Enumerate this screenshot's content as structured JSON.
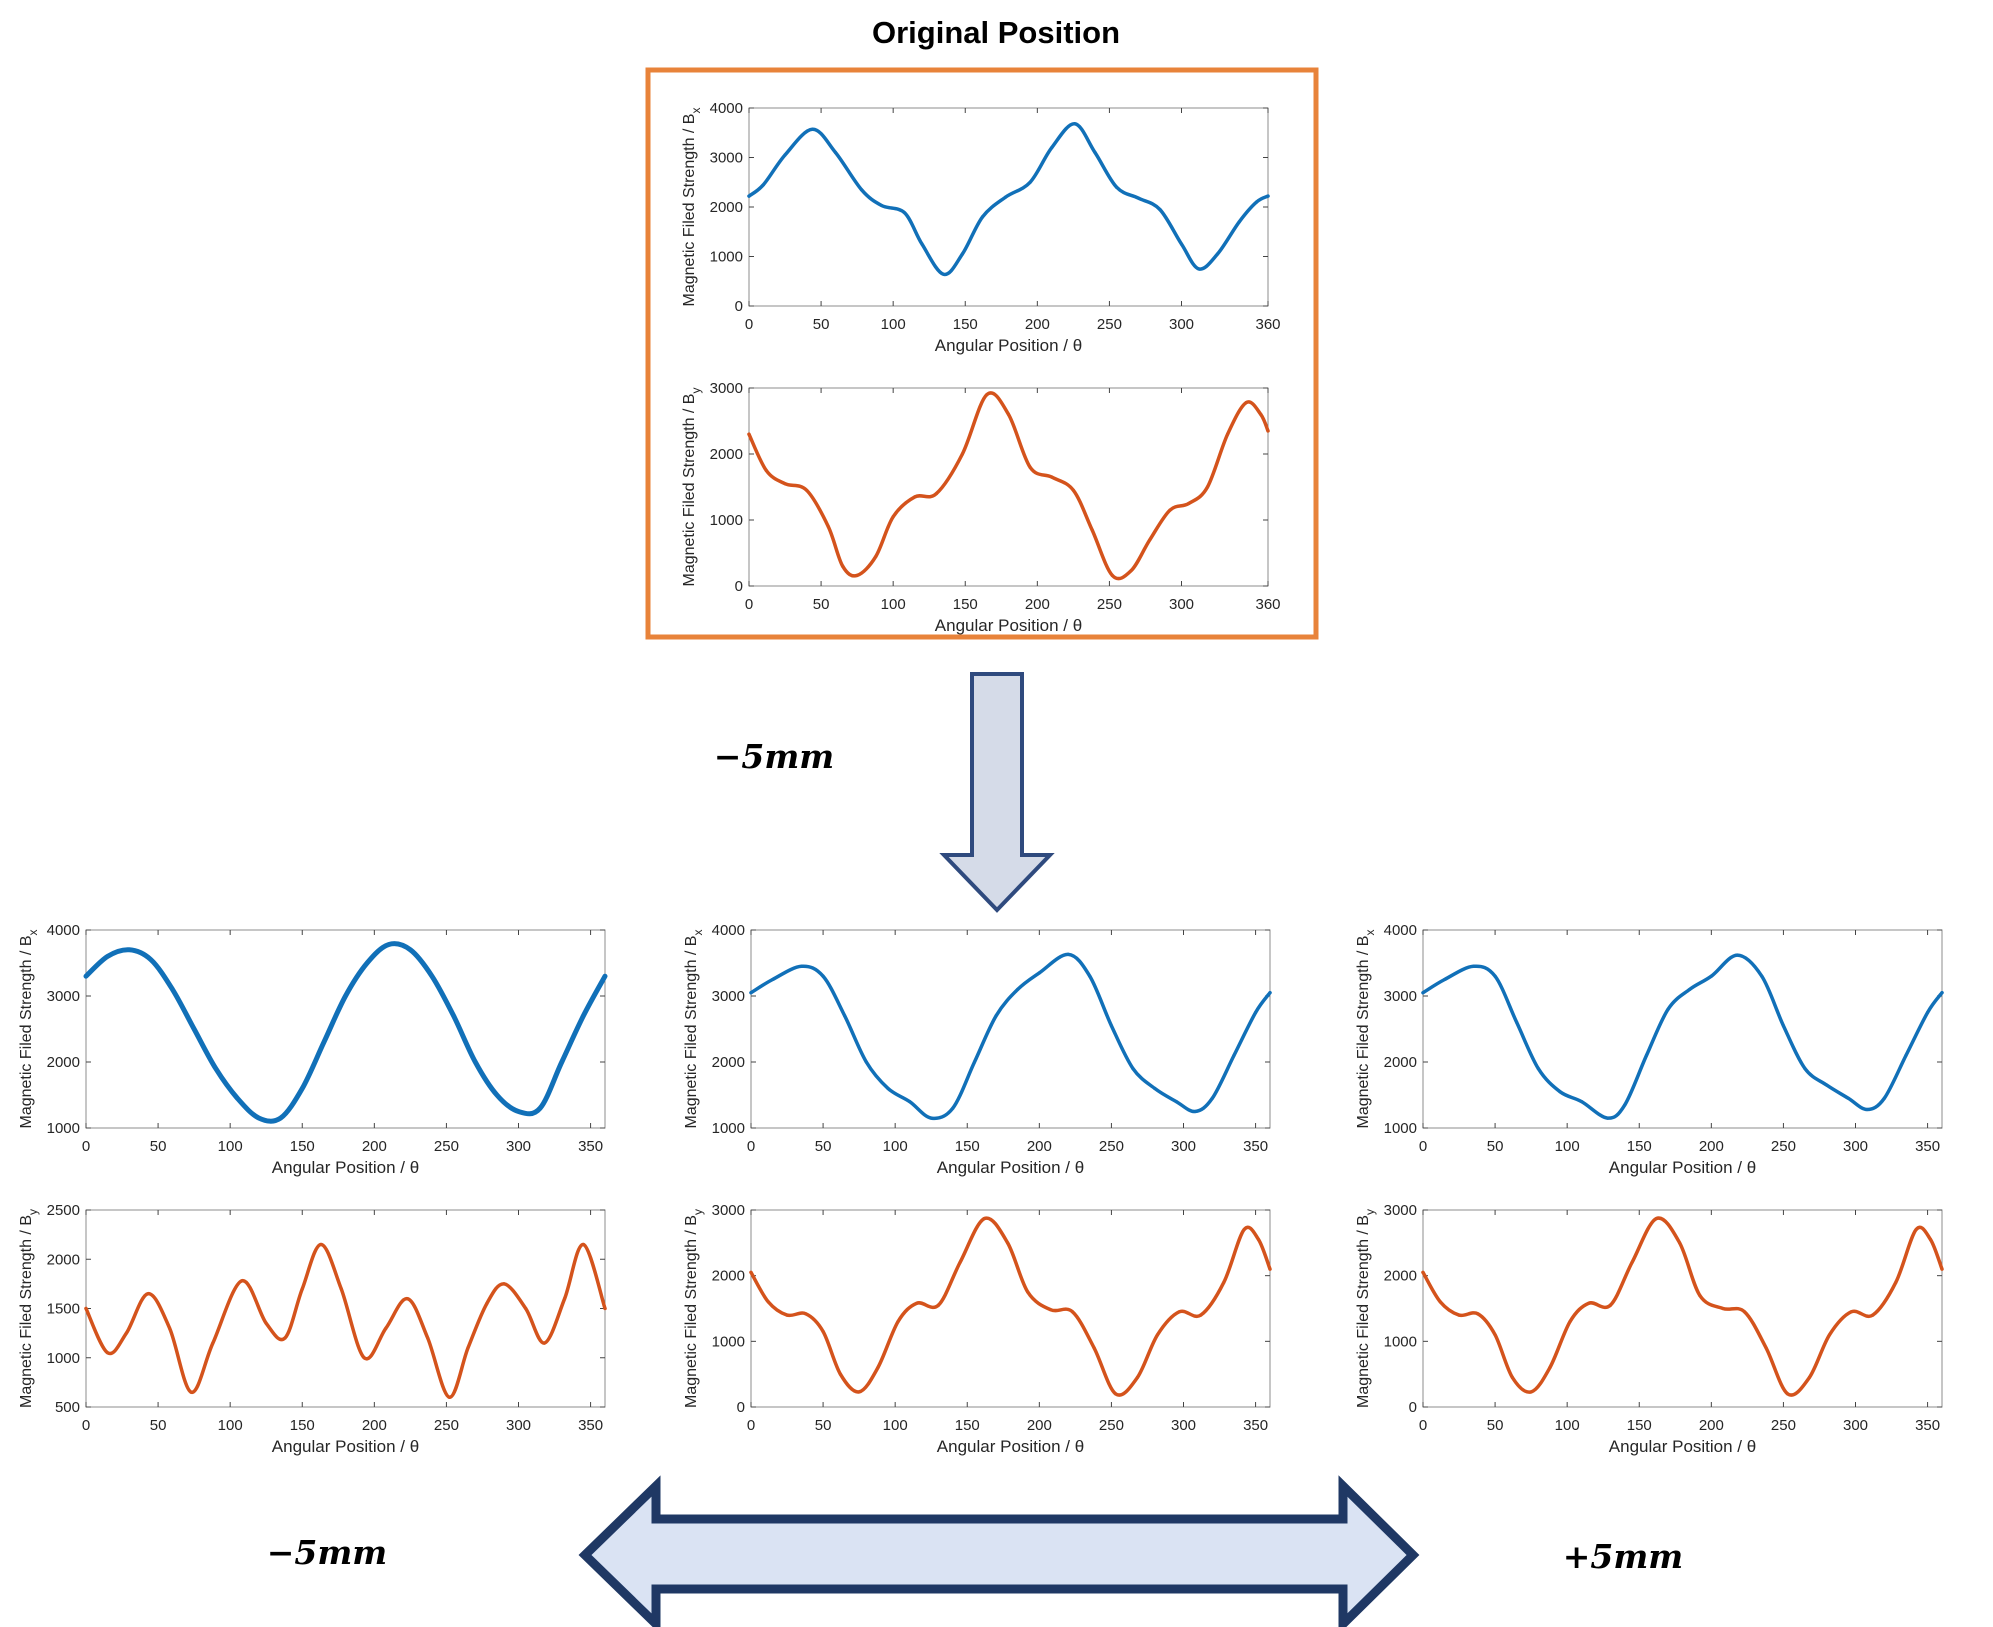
{
  "figure": {
    "title": "Original Position",
    "shift_top": "−5mm",
    "shift_left": "−5mm",
    "shift_right": "+5mm",
    "colors": {
      "bx": "#1170b8",
      "by": "#d4531c",
      "frame": "#e8833a",
      "arrow_fill": "#d5dbe8",
      "arrow_fill2": "#dae3f3",
      "arrow_stroke": "#2f4a7e",
      "arrow_stroke2": "#1f3864"
    }
  },
  "chart_data": [
    {
      "id": "orig-bx",
      "type": "line",
      "group": "Original Position",
      "xlabel": "Angular Position / θ",
      "ylabel": "Magnetic Filed Strength / B",
      "ylabel_sub": "x",
      "xlim": [
        0,
        360
      ],
      "ylim": [
        0,
        4000
      ],
      "xticks": [
        0,
        50,
        100,
        150,
        200,
        250,
        300,
        360
      ],
      "yticks": [
        0,
        1000,
        2000,
        3000,
        4000
      ],
      "series": [
        {
          "color": "#1170b8",
          "x": [
            0,
            10,
            25,
            44,
            60,
            78,
            92,
            108,
            120,
            135,
            148,
            162,
            178,
            195,
            210,
            226,
            240,
            255,
            270,
            285,
            300,
            312,
            325,
            340,
            352,
            360
          ],
          "y": [
            2220,
            2450,
            3050,
            3570,
            3100,
            2350,
            2030,
            1880,
            1250,
            640,
            1050,
            1800,
            2200,
            2500,
            3200,
            3680,
            3100,
            2400,
            2180,
            1950,
            1250,
            750,
            1050,
            1700,
            2100,
            2220
          ]
        }
      ]
    },
    {
      "id": "orig-by",
      "type": "line",
      "group": "Original Position",
      "xlabel": "Angular Position / θ",
      "ylabel": "Magnetic Filed Strength / B",
      "ylabel_sub": "y",
      "xlim": [
        0,
        360
      ],
      "ylim": [
        0,
        3000
      ],
      "xticks": [
        0,
        50,
        100,
        150,
        200,
        250,
        300,
        360
      ],
      "yticks": [
        0,
        1000,
        2000,
        3000
      ],
      "series": [
        {
          "color": "#d4531c",
          "x": [
            0,
            12,
            25,
            40,
            55,
            65,
            75,
            88,
            100,
            115,
            130,
            148,
            165,
            180,
            195,
            210,
            225,
            238,
            252,
            265,
            278,
            292,
            305,
            318,
            332,
            345,
            355,
            360
          ],
          "y": [
            2300,
            1750,
            1550,
            1450,
            900,
            300,
            160,
            450,
            1050,
            1350,
            1400,
            2000,
            2900,
            2600,
            1800,
            1650,
            1450,
            850,
            160,
            230,
            700,
            1150,
            1250,
            1500,
            2300,
            2780,
            2600,
            2350
          ]
        }
      ]
    },
    {
      "id": "left-bx",
      "type": "line",
      "group": "−5mm",
      "xlabel": "Angular Position / θ",
      "ylabel": "Magnetic Filed Strength / B",
      "ylabel_sub": "x",
      "xlim": [
        0,
        360
      ],
      "ylim": [
        1000,
        4000
      ],
      "xticks": [
        0,
        50,
        100,
        150,
        200,
        250,
        300,
        350
      ],
      "yticks": [
        1000,
        2000,
        3000,
        4000
      ],
      "series": [
        {
          "color": "#1170b8",
          "x": [
            0,
            15,
            30,
            45,
            60,
            75,
            90,
            105,
            120,
            135,
            150,
            165,
            180,
            195,
            210,
            225,
            240,
            255,
            270,
            285,
            300,
            315,
            330,
            345,
            360
          ],
          "y": [
            3300,
            3600,
            3700,
            3550,
            3100,
            2500,
            1900,
            1450,
            1150,
            1150,
            1600,
            2300,
            3000,
            3500,
            3780,
            3700,
            3300,
            2700,
            2000,
            1500,
            1250,
            1300,
            2000,
            2700,
            3300
          ]
        }
      ]
    },
    {
      "id": "left-by",
      "type": "line",
      "group": "−5mm",
      "xlabel": "Angular Position / θ",
      "ylabel": "Magnetic Filed Strength / B",
      "ylabel_sub": "y",
      "xlim": [
        0,
        360
      ],
      "ylim": [
        500,
        2500
      ],
      "xticks": [
        0,
        50,
        100,
        150,
        200,
        250,
        300,
        350
      ],
      "yticks": [
        500,
        1000,
        1500,
        2000,
        2500
      ],
      "series": [
        {
          "color": "#d4531c",
          "x": [
            0,
            15,
            28,
            43,
            58,
            73,
            88,
            108,
            125,
            138,
            150,
            163,
            177,
            193,
            208,
            223,
            237,
            252,
            265,
            278,
            290,
            305,
            318,
            332,
            345,
            360
          ],
          "y": [
            1500,
            1050,
            1250,
            1650,
            1300,
            650,
            1150,
            1780,
            1350,
            1200,
            1700,
            2150,
            1700,
            1000,
            1300,
            1600,
            1200,
            600,
            1100,
            1550,
            1750,
            1500,
            1150,
            1600,
            2150,
            1500
          ]
        }
      ]
    },
    {
      "id": "center-bx",
      "type": "line",
      "group": "center",
      "xlabel": "Angular Position / θ",
      "ylabel": "Magnetic Filed Strength / B",
      "ylabel_sub": "x",
      "xlim": [
        0,
        360
      ],
      "ylim": [
        1000,
        4000
      ],
      "xticks": [
        0,
        50,
        100,
        150,
        200,
        250,
        300,
        350
      ],
      "yticks": [
        1000,
        2000,
        3000,
        4000
      ],
      "series": [
        {
          "color": "#1170b8",
          "x": [
            0,
            15,
            35,
            50,
            65,
            80,
            95,
            110,
            125,
            140,
            155,
            170,
            185,
            200,
            220,
            235,
            250,
            265,
            280,
            295,
            308,
            320,
            335,
            350,
            360
          ],
          "y": [
            3050,
            3250,
            3450,
            3300,
            2700,
            2000,
            1600,
            1400,
            1150,
            1300,
            2000,
            2700,
            3100,
            3350,
            3630,
            3300,
            2550,
            1900,
            1600,
            1400,
            1250,
            1450,
            2100,
            2750,
            3050
          ]
        }
      ]
    },
    {
      "id": "center-by",
      "type": "line",
      "group": "center",
      "xlabel": "Angular Position / θ",
      "ylabel": "Magnetic Filed Strength / B",
      "ylabel_sub": "y",
      "xlim": [
        0,
        360
      ],
      "ylim": [
        0,
        3000
      ],
      "xticks": [
        0,
        50,
        100,
        150,
        200,
        250,
        300,
        350
      ],
      "yticks": [
        0,
        1000,
        2000,
        3000
      ],
      "series": [
        {
          "color": "#d4531c",
          "x": [
            0,
            12,
            25,
            38,
            50,
            62,
            75,
            88,
            102,
            115,
            130,
            145,
            162,
            178,
            192,
            208,
            223,
            238,
            253,
            268,
            282,
            297,
            312,
            328,
            342,
            352,
            360
          ],
          "y": [
            2050,
            1600,
            1400,
            1420,
            1150,
            500,
            230,
            600,
            1300,
            1580,
            1550,
            2200,
            2870,
            2500,
            1750,
            1480,
            1450,
            900,
            200,
            450,
            1100,
            1450,
            1400,
            1900,
            2700,
            2550,
            2100
          ]
        }
      ]
    },
    {
      "id": "right-bx",
      "type": "line",
      "group": "+5mm",
      "xlabel": "Angular Position / θ",
      "ylabel": "Magnetic Filed Strength / B",
      "ylabel_sub": "x",
      "xlim": [
        0,
        360
      ],
      "ylim": [
        1000,
        4000
      ],
      "xticks": [
        0,
        50,
        100,
        150,
        200,
        250,
        300,
        350
      ],
      "yticks": [
        1000,
        2000,
        3000,
        4000
      ],
      "series": [
        {
          "color": "#1170b8",
          "x": [
            0,
            15,
            35,
            50,
            65,
            80,
            95,
            110,
            128,
            140,
            155,
            170,
            185,
            200,
            218,
            235,
            250,
            265,
            280,
            295,
            308,
            320,
            335,
            350,
            360
          ],
          "y": [
            3050,
            3250,
            3450,
            3300,
            2600,
            1900,
            1550,
            1400,
            1150,
            1350,
            2100,
            2800,
            3100,
            3300,
            3620,
            3300,
            2550,
            1900,
            1650,
            1450,
            1280,
            1450,
            2100,
            2750,
            3050
          ]
        }
      ]
    },
    {
      "id": "right-by",
      "type": "line",
      "group": "+5mm",
      "xlabel": "Angular Position / θ",
      "ylabel": "Magnetic Filed Strength / B",
      "ylabel_sub": "y",
      "xlim": [
        0,
        360
      ],
      "ylim": [
        0,
        3000
      ],
      "xticks": [
        0,
        50,
        100,
        150,
        200,
        250,
        300,
        350
      ],
      "yticks": [
        0,
        1000,
        2000,
        3000
      ],
      "series": [
        {
          "color": "#d4531c",
          "x": [
            0,
            12,
            25,
            38,
            50,
            62,
            75,
            88,
            102,
            115,
            130,
            145,
            162,
            178,
            192,
            208,
            223,
            238,
            253,
            268,
            282,
            297,
            312,
            328,
            342,
            352,
            360
          ],
          "y": [
            2050,
            1600,
            1400,
            1420,
            1100,
            450,
            230,
            600,
            1300,
            1580,
            1550,
            2200,
            2870,
            2500,
            1700,
            1500,
            1450,
            900,
            200,
            450,
            1100,
            1450,
            1400,
            1900,
            2700,
            2550,
            2100
          ]
        }
      ]
    }
  ]
}
